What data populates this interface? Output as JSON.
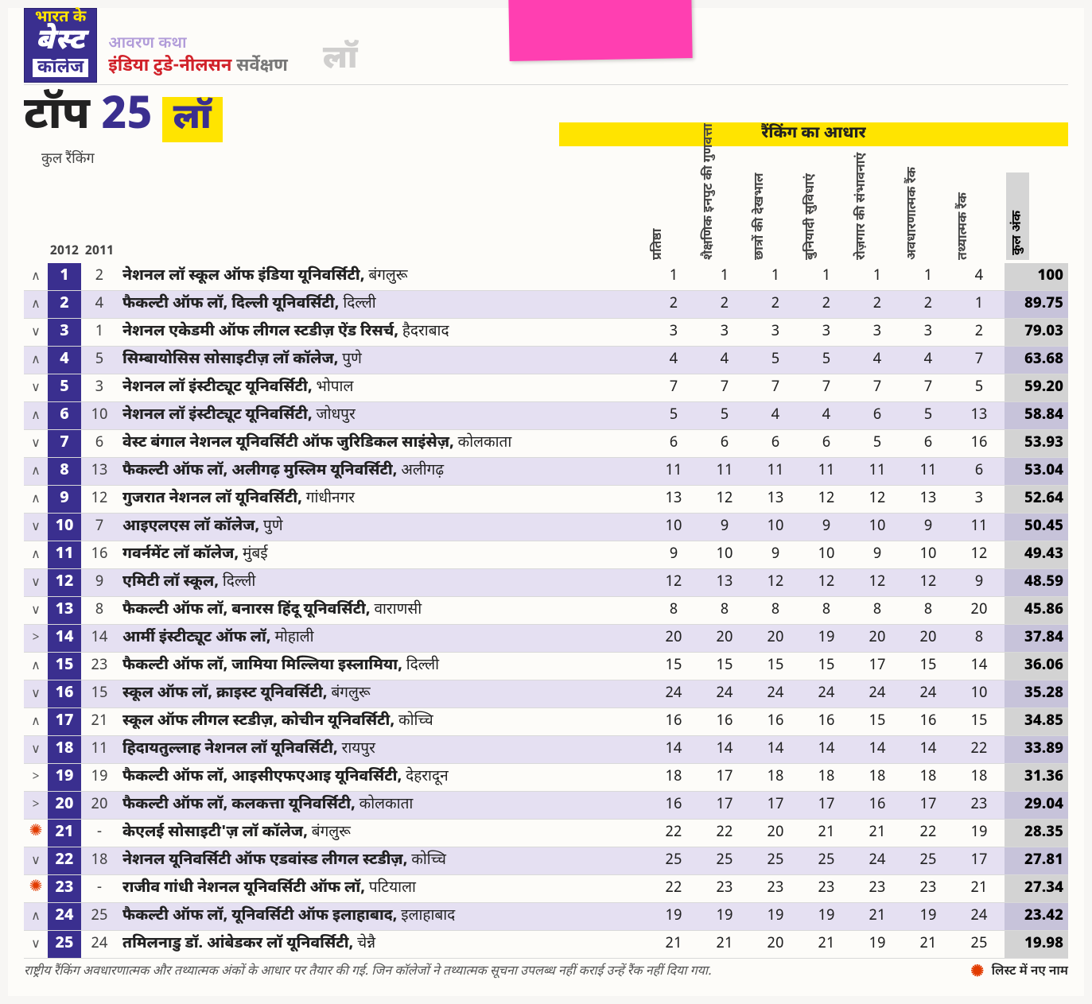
{
  "header": {
    "logo_top": "भारत के",
    "logo_mid": "बेस्ट",
    "logo_bot": "कॉलेज",
    "sub1": "आवरण कथा",
    "sub2_red": "इंडिया टुडे-नीलसन",
    "sub2_gray": "सर्वेक्षण",
    "law_faded": "लॉ"
  },
  "title": {
    "top_word": "टॉप",
    "top_num": "25",
    "law_chip": "लॉ",
    "basis_label": "रैंकिंग का आधार",
    "rank_label": "कुल रैंकिंग",
    "year_2012": "2012",
    "year_2011": "2011"
  },
  "columns": {
    "c1": "प्रतिष्ठा",
    "c2": "शैक्षणिक इनपुट की गुणवत्ता",
    "c3": "छात्रों की देखभाल",
    "c4": "बुनियादी सुविधाएं",
    "c5": "रोज़गार की संभावनाएं",
    "c6": "अवधारणात्मक रैंक",
    "c7": "तथ्यात्मक रैंक",
    "c8": "कुल अंक"
  },
  "footer": {
    "note": "राष्ट्रीय रैंकिंग अवधारणात्मक और तथ्यात्मक अंकों के आधार पर तैयार की गई. जिन कॉलेजों ने तथ्यात्मक सूचना उपलब्ध नहीं कराई उन्हें रैंक नहीं दिया गया.",
    "legend": "लिस्ट में नए नाम"
  },
  "arrows": {
    "up": "∧",
    "down": "∨",
    "same": ">",
    "new": "✺"
  },
  "rows": [
    {
      "a": "up",
      "r12": "1",
      "r11": "2",
      "name_b": "नेशनल लॉ स्कूल ऑफ इंडिया यूनिवर्सिटी,",
      "name_r": " बंगलुरू",
      "m": [
        "1",
        "1",
        "1",
        "1",
        "1",
        "1",
        "4"
      ],
      "t": "100"
    },
    {
      "a": "up",
      "r12": "2",
      "r11": "4",
      "name_b": "फैकल्टी ऑफ लॉ, दिल्ली यूनिवर्सिटी,",
      "name_r": " दिल्ली",
      "m": [
        "2",
        "2",
        "2",
        "2",
        "2",
        "2",
        "1"
      ],
      "t": "89.75"
    },
    {
      "a": "down",
      "r12": "3",
      "r11": "1",
      "name_b": "नेशनल एकेडमी ऑफ लीगल स्टडीज़ ऐंड रिसर्च,",
      "name_r": " हैदराबाद",
      "m": [
        "3",
        "3",
        "3",
        "3",
        "3",
        "3",
        "2"
      ],
      "t": "79.03"
    },
    {
      "a": "up",
      "r12": "4",
      "r11": "5",
      "name_b": "सिम्बायोसिस सोसाइटीज़ लॉ कॉलेज,",
      "name_r": " पुणे",
      "m": [
        "4",
        "4",
        "5",
        "5",
        "4",
        "4",
        "7"
      ],
      "t": "63.68"
    },
    {
      "a": "down",
      "r12": "5",
      "r11": "3",
      "name_b": "नेशनल लॉ इंस्टीट्यूट यूनिवर्सिटी,",
      "name_r": " भोपाल",
      "m": [
        "7",
        "7",
        "7",
        "7",
        "7",
        "7",
        "5"
      ],
      "t": "59.20"
    },
    {
      "a": "up",
      "r12": "6",
      "r11": "10",
      "name_b": "नेशनल लॉ इंस्टीट्यूट यूनिवर्सिटी,",
      "name_r": " जोधपुर",
      "m": [
        "5",
        "5",
        "4",
        "4",
        "6",
        "5",
        "13"
      ],
      "t": "58.84"
    },
    {
      "a": "down",
      "r12": "7",
      "r11": "6",
      "name_b": "वेस्ट बंगाल नेशनल यूनिवर्सिटी ऑफ जुरिडिकल साइंसेज़,",
      "name_r": " कोलकाता",
      "m": [
        "6",
        "6",
        "6",
        "6",
        "5",
        "6",
        "16"
      ],
      "t": "53.93"
    },
    {
      "a": "up",
      "r12": "8",
      "r11": "13",
      "name_b": "फैकल्टी ऑफ लॉ, अलीगढ़ मुस्लिम यूनिवर्सिटी,",
      "name_r": " अलीगढ़",
      "m": [
        "11",
        "11",
        "11",
        "11",
        "11",
        "11",
        "6"
      ],
      "t": "53.04"
    },
    {
      "a": "up",
      "r12": "9",
      "r11": "12",
      "name_b": "गुजरात नेशनल लॉ यूनिवर्सिटी,",
      "name_r": " गांधीनगर",
      "m": [
        "13",
        "12",
        "13",
        "12",
        "12",
        "13",
        "3"
      ],
      "t": "52.64"
    },
    {
      "a": "down",
      "r12": "10",
      "r11": "7",
      "name_b": "आइएलएस लॉ कॉलेज,",
      "name_r": " पुणे",
      "m": [
        "10",
        "9",
        "10",
        "9",
        "10",
        "9",
        "11"
      ],
      "t": "50.45"
    },
    {
      "a": "up",
      "r12": "11",
      "r11": "16",
      "name_b": "गवर्नमेंट लॉ कॉलेज,",
      "name_r": " मुंबई",
      "m": [
        "9",
        "10",
        "9",
        "10",
        "9",
        "10",
        "12"
      ],
      "t": "49.43"
    },
    {
      "a": "down",
      "r12": "12",
      "r11": "9",
      "name_b": "एमिटी लॉ स्कूल,",
      "name_r": " दिल्ली",
      "m": [
        "12",
        "13",
        "12",
        "12",
        "12",
        "12",
        "9"
      ],
      "t": "48.59"
    },
    {
      "a": "down",
      "r12": "13",
      "r11": "8",
      "name_b": "फैकल्टी ऑफ लॉ, बनारस हिंदू यूनिवर्सिटी,",
      "name_r": " वाराणसी",
      "m": [
        "8",
        "8",
        "8",
        "8",
        "8",
        "8",
        "20"
      ],
      "t": "45.86"
    },
    {
      "a": "same",
      "r12": "14",
      "r11": "14",
      "name_b": "आर्मी इंस्टीट्यूट ऑफ लॉ,",
      "name_r": " मोहाली",
      "m": [
        "20",
        "20",
        "20",
        "19",
        "20",
        "20",
        "8"
      ],
      "t": "37.84"
    },
    {
      "a": "up",
      "r12": "15",
      "r11": "23",
      "name_b": "फैकल्टी ऑफ लॉ, जामिया मिल्लिया इस्लामिया,",
      "name_r": " दिल्ली",
      "m": [
        "15",
        "15",
        "15",
        "15",
        "17",
        "15",
        "14"
      ],
      "t": "36.06"
    },
    {
      "a": "down",
      "r12": "16",
      "r11": "15",
      "name_b": "स्कूल ऑफ लॉ, क्राइस्ट यूनिवर्सिटी,",
      "name_r": " बंगलुरू",
      "m": [
        "24",
        "24",
        "24",
        "24",
        "24",
        "24",
        "10"
      ],
      "t": "35.28"
    },
    {
      "a": "up",
      "r12": "17",
      "r11": "21",
      "name_b": "स्कूल ऑफ लीगल स्टडीज़, कोचीन यूनिवर्सिटी,",
      "name_r": " कोच्चि",
      "m": [
        "16",
        "16",
        "16",
        "16",
        "15",
        "16",
        "15"
      ],
      "t": "34.85"
    },
    {
      "a": "down",
      "r12": "18",
      "r11": "11",
      "name_b": "हिदायतुल्लाह नेशनल लॉ यूनिवर्सिटी,",
      "name_r": " रायपुर",
      "m": [
        "14",
        "14",
        "14",
        "14",
        "14",
        "14",
        "22"
      ],
      "t": "33.89"
    },
    {
      "a": "same",
      "r12": "19",
      "r11": "19",
      "name_b": "फैकल्टी ऑफ लॉ, आइसीएफएआइ यूनिवर्सिटी,",
      "name_r": " देहरादून",
      "m": [
        "18",
        "17",
        "18",
        "18",
        "18",
        "18",
        "18"
      ],
      "t": "31.36"
    },
    {
      "a": "same",
      "r12": "20",
      "r11": "20",
      "name_b": "फैकल्टी ऑफ लॉ, कलकत्ता यूनिवर्सिटी,",
      "name_r": " कोलकाता",
      "m": [
        "16",
        "17",
        "17",
        "17",
        "16",
        "17",
        "23"
      ],
      "t": "29.04"
    },
    {
      "a": "new",
      "r12": "21",
      "r11": "-",
      "name_b": "केएलई सोसाइटी'ज़ लॉ कॉलेज,",
      "name_r": "  बंगलुरू",
      "m": [
        "22",
        "22",
        "20",
        "21",
        "21",
        "22",
        "19"
      ],
      "t": "28.35"
    },
    {
      "a": "down",
      "r12": "22",
      "r11": "18",
      "name_b": "नेशनल यूनिवर्सिटी ऑफ एडवांस्ड लीगल स्टडीज़,",
      "name_r": " कोच्चि",
      "m": [
        "25",
        "25",
        "25",
        "25",
        "24",
        "25",
        "17"
      ],
      "t": "27.81"
    },
    {
      "a": "new",
      "r12": "23",
      "r11": "-",
      "name_b": "राजीव गांधी नेशनल यूनिवर्सिटी ऑफ लॉ,",
      "name_r": " पटियाला",
      "m": [
        "22",
        "23",
        "23",
        "23",
        "23",
        "23",
        "21"
      ],
      "t": "27.34"
    },
    {
      "a": "up",
      "r12": "24",
      "r11": "25",
      "name_b": "फैकल्टी ऑफ लॉ, यूनिवर्सिटी ऑफ इलाहाबाद,",
      "name_r": " इलाहाबाद",
      "m": [
        "19",
        "19",
        "19",
        "19",
        "21",
        "19",
        "24"
      ],
      "t": "23.42"
    },
    {
      "a": "down",
      "r12": "25",
      "r11": "24",
      "name_b": "तमिलनाडु डॉ. आंबेडकर लॉ यूनिवर्सिटी,",
      "name_r": " चेन्नै",
      "m": [
        "21",
        "21",
        "20",
        "21",
        "19",
        "21",
        "25"
      ],
      "t": "19.98"
    }
  ]
}
